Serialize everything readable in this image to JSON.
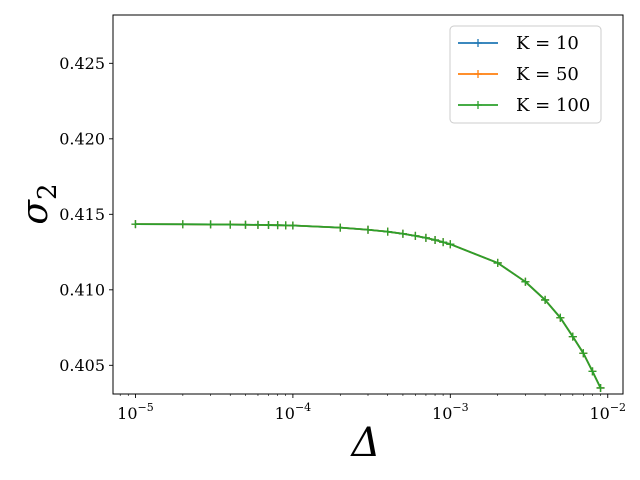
{
  "chart_data": {
    "type": "line",
    "title": "",
    "xlabel": "Δ",
    "ylabel": "σ",
    "ylabel_subscript": "2",
    "x_scale": "log",
    "xlim": [
      7.2e-06,
      0.0125
    ],
    "ylim": [
      0.4031,
      0.4282
    ],
    "xticks": [
      {
        "value": 1e-05,
        "base": "10",
        "exp": "−5"
      },
      {
        "value": 0.0001,
        "base": "10",
        "exp": "−4"
      },
      {
        "value": 0.001,
        "base": "10",
        "exp": "−3"
      },
      {
        "value": 0.01,
        "base": "10",
        "exp": "−2"
      }
    ],
    "yticks": [
      {
        "value": 0.405,
        "label": "0.405"
      },
      {
        "value": 0.41,
        "label": "0.410"
      },
      {
        "value": 0.415,
        "label": "0.415"
      },
      {
        "value": 0.42,
        "label": "0.420"
      },
      {
        "value": 0.425,
        "label": "0.425"
      }
    ],
    "grid": false,
    "legend_position": "top-right",
    "marker": "+",
    "x": [
      1e-05,
      2e-05,
      3e-05,
      4e-05,
      5e-05,
      6e-05,
      7e-05,
      8e-05,
      9e-05,
      0.0001,
      0.0002,
      0.0003,
      0.0004,
      0.0005,
      0.0006,
      0.0007,
      0.0008,
      0.0009,
      0.001,
      0.002,
      0.003,
      0.004,
      0.005,
      0.006,
      0.007,
      0.008,
      0.009
    ],
    "series": [
      {
        "name": "K = 10",
        "color": "#1f77b4",
        "values": [
          0.41435,
          0.41434,
          0.41433,
          0.41432,
          0.41431,
          0.4143,
          0.41429,
          0.41428,
          0.41427,
          0.41426,
          0.41412,
          0.41398,
          0.41385,
          0.41371,
          0.41357,
          0.41344,
          0.4133,
          0.41316,
          0.41302,
          0.41178,
          0.41053,
          0.40933,
          0.40815,
          0.4069,
          0.4058,
          0.4046,
          0.4035
        ]
      },
      {
        "name": "K = 50",
        "color": "#ff7f0e",
        "values": [
          0.41435,
          0.41434,
          0.41433,
          0.41432,
          0.41431,
          0.4143,
          0.41429,
          0.41428,
          0.41427,
          0.41426,
          0.41412,
          0.41398,
          0.41385,
          0.41371,
          0.41357,
          0.41344,
          0.4133,
          0.41316,
          0.41302,
          0.41178,
          0.41053,
          0.40933,
          0.40815,
          0.4069,
          0.4058,
          0.4046,
          0.4035
        ]
      },
      {
        "name": "K = 100",
        "color": "#2ca02c",
        "values": [
          0.41435,
          0.41434,
          0.41433,
          0.41432,
          0.41431,
          0.4143,
          0.41429,
          0.41428,
          0.41427,
          0.41426,
          0.41412,
          0.41398,
          0.41385,
          0.41371,
          0.41357,
          0.41344,
          0.4133,
          0.41316,
          0.41302,
          0.41178,
          0.41053,
          0.40933,
          0.40815,
          0.4069,
          0.4058,
          0.4046,
          0.4035
        ]
      }
    ]
  }
}
